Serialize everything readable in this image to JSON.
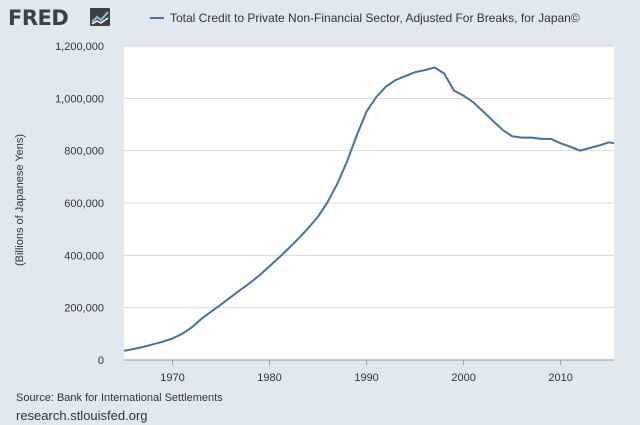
{
  "header": {
    "logo_text": "FRED",
    "logo_icon": "fred-chart-icon"
  },
  "legend": {
    "series_label": "Total Credit to Private Non-Financial Sector, Adjusted For Breaks, for Japan©"
  },
  "footer": {
    "source": "Source: Bank for International Settlements",
    "url": "research.stlouisfed.org"
  },
  "colors": {
    "background": "#e1e9f0",
    "plot_background": "#ffffff",
    "series": "#4572a7",
    "grid": "#d8d8d8"
  },
  "chart_data": {
    "type": "line",
    "title": "",
    "xlabel": "",
    "ylabel": "(Billions of Japanese Yens)",
    "xlim": [
      1965,
      2015.5
    ],
    "ylim": [
      0,
      1200000
    ],
    "xticks": [
      1970,
      1980,
      1990,
      2000,
      2010
    ],
    "yticks": [
      0,
      200000,
      400000,
      600000,
      800000,
      1000000,
      1200000
    ],
    "ytick_labels": [
      "0",
      "200,000",
      "400,000",
      "600,000",
      "800,000",
      "1,000,000",
      "1,200,000"
    ],
    "grid": "horizontal",
    "legend": "top",
    "series": [
      {
        "name": "Total Credit to Private Non-Financial Sector, Adjusted For Breaks, for Japan©",
        "x": [
          1965,
          1966,
          1967,
          1968,
          1969,
          1970,
          1971,
          1972,
          1973,
          1974,
          1975,
          1976,
          1977,
          1978,
          1979,
          1980,
          1981,
          1982,
          1983,
          1984,
          1985,
          1986,
          1987,
          1988,
          1989,
          1990,
          1991,
          1992,
          1993,
          1994,
          1995,
          1996,
          1997,
          1998,
          1999,
          2000,
          2001,
          2002,
          2003,
          2004,
          2005,
          2006,
          2007,
          2008,
          2009,
          2010,
          2011,
          2012,
          2013,
          2014,
          2015,
          2015.5
        ],
        "values": [
          35000,
          42000,
          50000,
          60000,
          70000,
          82000,
          100000,
          125000,
          158000,
          185000,
          212000,
          240000,
          268000,
          295000,
          325000,
          358000,
          392000,
          428000,
          465000,
          505000,
          548000,
          605000,
          675000,
          760000,
          860000,
          950000,
          1005000,
          1045000,
          1070000,
          1085000,
          1100000,
          1108000,
          1118000,
          1095000,
          1030000,
          1010000,
          985000,
          950000,
          915000,
          880000,
          855000,
          850000,
          850000,
          845000,
          845000,
          828000,
          815000,
          800000,
          810000,
          820000,
          832000,
          828000
        ]
      }
    ]
  }
}
